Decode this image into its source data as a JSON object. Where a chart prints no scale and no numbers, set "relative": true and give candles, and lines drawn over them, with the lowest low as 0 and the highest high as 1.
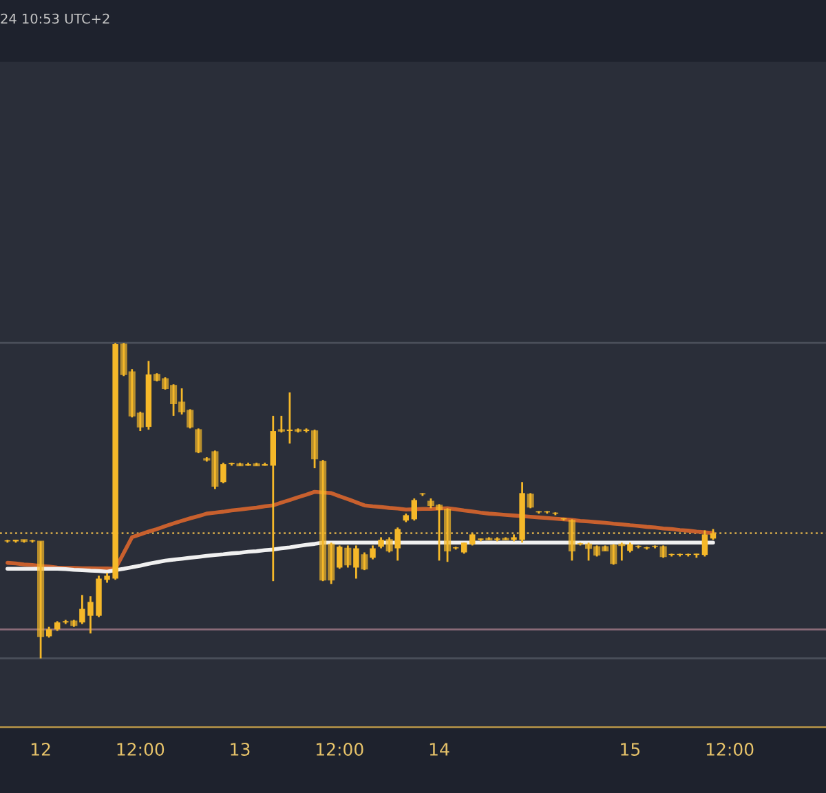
{
  "chart_data": {
    "type": "candlestick",
    "relative": true,
    "color": "#f5b829",
    "annotations": [
      "24 10:53 UTC+2"
    ],
    "categories": [
      null,
      null,
      null,
      null,
      "12",
      null,
      null,
      null,
      null,
      null,
      null,
      null,
      null,
      null,
      null,
      null,
      "12:00",
      null,
      null,
      null,
      null,
      null,
      null,
      null,
      null,
      null,
      null,
      null,
      "13",
      null,
      null,
      null,
      null,
      null,
      null,
      null,
      null,
      null,
      null,
      null,
      "12:00",
      null,
      null,
      null,
      null,
      null,
      null,
      null,
      null,
      null,
      null,
      null,
      "14",
      null,
      null,
      null,
      null,
      null,
      null,
      null,
      null,
      null,
      null,
      null,
      null,
      null,
      null,
      null,
      null,
      null,
      null,
      null,
      null,
      null,
      null,
      "15",
      null,
      null,
      null,
      null,
      null,
      null,
      null,
      null,
      null,
      null,
      null,
      "12:00",
      null,
      null,
      null,
      null,
      null,
      null,
      null,
      null,
      null,
      null,
      null
    ],
    "ohlc": [
      [
        0.371,
        0.376,
        0.367,
        0.371
      ],
      [
        0.371,
        0.376,
        0.367,
        0.376
      ],
      [
        0.376,
        0.376,
        0.367,
        0.371
      ],
      [
        0.371,
        0.376,
        0.367,
        0.371
      ],
      [
        0.371,
        0.371,
        0,
        0.07
      ],
      [
        0.07,
        0.1,
        0.066,
        0.092
      ],
      [
        0.092,
        0.118,
        0.087,
        0.114
      ],
      [
        0.114,
        0.122,
        0.109,
        0.118
      ],
      [
        0.118,
        0.122,
        0.1,
        0.105
      ],
      [
        0.114,
        0.201,
        0.109,
        0.157
      ],
      [
        0.135,
        0.197,
        0.079,
        0.179
      ],
      [
        0.135,
        0.262,
        0.131,
        0.253
      ],
      [
        0.249,
        0.271,
        0.24,
        0.262
      ],
      [
        0.253,
        1,
        0.249,
        0.996
      ],
      [
        0.996,
        1,
        0.895,
        0.9
      ],
      [
        0.908,
        0.917,
        0.764,
        0.769
      ],
      [
        0.777,
        0.782,
        0.721,
        0.734
      ],
      [
        0.734,
        0.943,
        0.725,
        0.9
      ],
      [
        0.9,
        0.904,
        0.878,
        0.882
      ],
      [
        0.886,
        0.891,
        0.852,
        0.856
      ],
      [
        0.865,
        0.869,
        0.769,
        0.808
      ],
      [
        0.812,
        0.856,
        0.773,
        0.782
      ],
      [
        0.786,
        0.79,
        0.729,
        0.734
      ],
      [
        0.725,
        0.729,
        0.651,
        0.655
      ],
      [
        0.633,
        0.638,
        0.624,
        0.629
      ],
      [
        0.655,
        0.659,
        0.537,
        0.546
      ],
      [
        0.559,
        0.62,
        0.555,
        0.616
      ],
      [
        0.616,
        0.62,
        0.611,
        0.616
      ],
      [
        0.616,
        0.62,
        0.611,
        0.611
      ],
      [
        0.611,
        0.62,
        0.611,
        0.616
      ],
      [
        0.616,
        0.62,
        0.611,
        0.611
      ],
      [
        0.611,
        0.62,
        0.611,
        0.616
      ],
      [
        0.611,
        0.769,
        0.245,
        0.721
      ],
      [
        0.725,
        0.769,
        0.716,
        0.721
      ],
      [
        0.721,
        0.843,
        0.681,
        0.725
      ],
      [
        0.725,
        0.729,
        0.716,
        0.721
      ],
      [
        0.721,
        0.729,
        0.716,
        0.725
      ],
      [
        0.721,
        0.725,
        0.603,
        0.633
      ],
      [
        0.624,
        0.629,
        0.245,
        0.249
      ],
      [
        0.362,
        0.367,
        0.236,
        0.249
      ],
      [
        0.288,
        0.358,
        0.284,
        0.354
      ],
      [
        0.349,
        0.358,
        0.288,
        0.297
      ],
      [
        0.288,
        0.358,
        0.253,
        0.349
      ],
      [
        0.328,
        0.336,
        0.28,
        0.284
      ],
      [
        0.319,
        0.358,
        0.314,
        0.349
      ],
      [
        0.354,
        0.384,
        0.349,
        0.376
      ],
      [
        0.376,
        0.384,
        0.336,
        0.341
      ],
      [
        0.349,
        0.415,
        0.31,
        0.41
      ],
      [
        0.437,
        0.459,
        0.432,
        0.454
      ],
      [
        0.441,
        0.507,
        0.437,
        0.502
      ],
      [
        0.52,
        0.524,
        0.515,
        0.52
      ],
      [
        0.498,
        0.507,
        0.476,
        0.485
      ],
      [
        0.485,
        0.489,
        0.31,
        0.472
      ],
      [
        0.472,
        0.476,
        0.306,
        0.341
      ],
      [
        0.349,
        0.354,
        0.345,
        0.349
      ],
      [
        0.336,
        0.367,
        0.332,
        0.367
      ],
      [
        0.362,
        0.397,
        0.358,
        0.393
      ],
      [
        0.376,
        0.38,
        0.371,
        0.38
      ],
      [
        0.38,
        0.384,
        0.376,
        0.376
      ],
      [
        0.376,
        0.384,
        0.371,
        0.38
      ],
      [
        0.38,
        0.384,
        0.376,
        0.376
      ],
      [
        0.376,
        0.393,
        0.371,
        0.384
      ],
      [
        0.376,
        0.559,
        0.367,
        0.524
      ],
      [
        0.52,
        0.524,
        0.476,
        0.48
      ],
      [
        0.463,
        0.467,
        0.459,
        0.463
      ],
      [
        0.463,
        0.467,
        0.459,
        0.463
      ],
      [
        0.459,
        0.463,
        0.454,
        0.459
      ],
      [
        0.441,
        0.445,
        0.437,
        0.441
      ],
      [
        0.437,
        0.441,
        0.31,
        0.341
      ],
      [
        0.362,
        0.367,
        0.358,
        0.362
      ],
      [
        0.362,
        0.367,
        0.31,
        0.349
      ],
      [
        0.354,
        0.358,
        0.323,
        0.328
      ],
      [
        0.354,
        0.358,
        0.341,
        0.341
      ],
      [
        0.358,
        0.362,
        0.297,
        0.301
      ],
      [
        0.362,
        0.367,
        0.31,
        0.358
      ],
      [
        0.341,
        0.367,
        0.336,
        0.362
      ],
      [
        0.354,
        0.358,
        0.349,
        0.354
      ],
      [
        0.349,
        0.354,
        0.345,
        0.349
      ],
      [
        0.354,
        0.358,
        0.349,
        0.354
      ],
      [
        0.354,
        0.358,
        0.319,
        0.323
      ],
      [
        0.328,
        0.332,
        0.323,
        0.328
      ],
      [
        0.328,
        0.332,
        0.323,
        0.328
      ],
      [
        0.328,
        0.332,
        0.323,
        0.328
      ],
      [
        0.328,
        0.332,
        0.319,
        0.332
      ],
      [
        0.328,
        0.406,
        0.323,
        0.393
      ],
      [
        0.38,
        0.41,
        0.376,
        0.397
      ],
      null,
      null,
      null,
      null,
      null,
      null,
      null,
      null,
      null,
      null,
      null,
      null,
      null
    ],
    "series": [
      {
        "type": "line",
        "color": "#c8602e",
        "values": [
          0.303,
          0.301,
          0.298,
          0.296,
          0.293,
          0.291,
          0.288,
          0.287,
          0.287,
          0.286,
          0.286,
          0.285,
          0.285,
          0.284,
          0.334,
          0.384,
          0.393,
          0.402,
          0.41,
          0.419,
          0.428,
          0.436,
          0.444,
          0.451,
          0.459,
          0.462,
          0.465,
          0.469,
          0.472,
          0.475,
          0.478,
          0.482,
          0.485,
          0.494,
          0.502,
          0.511,
          0.519,
          0.528,
          0.526,
          0.524,
          0.514,
          0.505,
          0.495,
          0.485,
          0.482,
          0.48,
          0.477,
          0.475,
          0.472,
          0.473,
          0.474,
          0.474,
          0.475,
          0.476,
          0.473,
          0.469,
          0.466,
          0.462,
          0.459,
          0.457,
          0.455,
          0.453,
          0.451,
          0.449,
          0.447,
          0.445,
          0.443,
          0.441,
          0.439,
          0.436,
          0.434,
          0.432,
          0.43,
          0.427,
          0.425,
          0.422,
          0.42,
          0.417,
          0.415,
          0.412,
          0.41,
          0.407,
          0.405,
          0.402,
          0.4,
          0.397,
          null,
          null,
          null,
          null,
          null,
          null,
          null,
          null,
          null,
          null,
          null,
          null,
          null
        ]
      },
      {
        "type": "line",
        "color": "#f0f0f0",
        "values": [
          0.284,
          0.284,
          0.284,
          0.284,
          0.284,
          0.284,
          0.284,
          0.283,
          0.281,
          0.28,
          0.278,
          0.277,
          0.275,
          0.28,
          0.284,
          0.289,
          0.294,
          0.3,
          0.305,
          0.31,
          0.313,
          0.316,
          0.319,
          0.322,
          0.325,
          0.328,
          0.33,
          0.333,
          0.335,
          0.338,
          0.34,
          0.343,
          0.345,
          0.349,
          0.352,
          0.356,
          0.36,
          0.363,
          0.367,
          0.367,
          0.367,
          0.367,
          0.367,
          0.367,
          0.367,
          0.367,
          0.367,
          0.367,
          0.367,
          0.367,
          0.367,
          0.367,
          0.367,
          0.367,
          0.367,
          0.367,
          0.367,
          0.367,
          0.367,
          0.367,
          0.367,
          0.367,
          0.367,
          0.367,
          0.367,
          0.367,
          0.367,
          0.367,
          0.367,
          0.367,
          0.367,
          0.367,
          0.367,
          0.367,
          0.367,
          0.367,
          0.367,
          0.367,
          0.367,
          0.367,
          0.367,
          0.367,
          0.367,
          0.367,
          0.367,
          0.367,
          null,
          null,
          null,
          null,
          null,
          null,
          null,
          null,
          null,
          null,
          null,
          null,
          null
        ]
      }
    ],
    "ref_lines": [
      {
        "axis": "y",
        "value": 1,
        "color": "#4a4f5a"
      },
      {
        "axis": "y",
        "value": 0,
        "color": "#4a4f5a"
      },
      {
        "axis": "y",
        "value": 0.092,
        "color": "#8a6b78"
      },
      {
        "axis": "y",
        "value": 0.397,
        "color": "#c9a24a",
        "line_style": "dotted"
      }
    ],
    "grid": false,
    "legend": false
  }
}
